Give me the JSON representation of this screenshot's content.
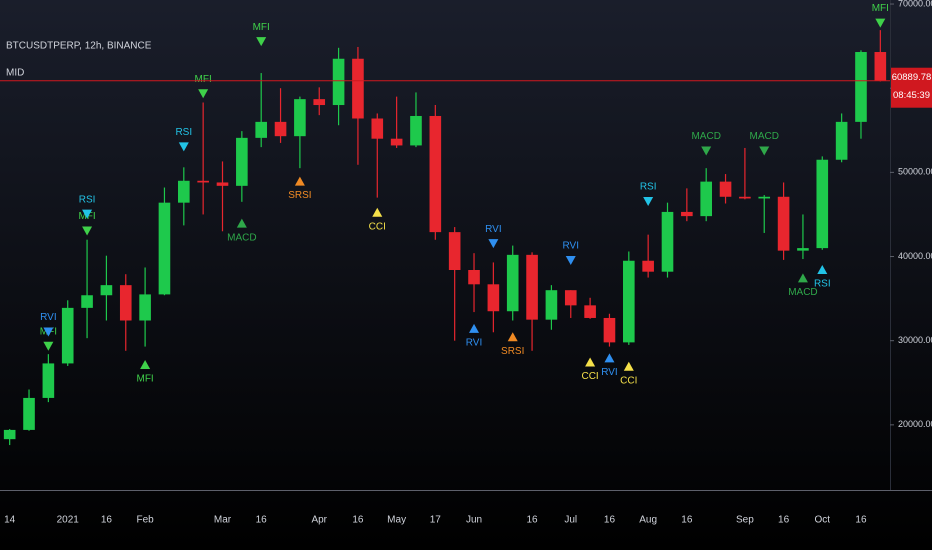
{
  "chart_data": {
    "type": "candlestick",
    "title": "BTCUSDTPERP, 12h, BINANCE",
    "subtitle": "MID",
    "categories": [
      "14",
      null,
      null,
      "2021",
      null,
      "16",
      null,
      "Feb",
      null,
      null,
      null,
      "Mar",
      null,
      "16",
      null,
      null,
      "Apr",
      null,
      "16",
      null,
      "May",
      null,
      "17",
      null,
      "Jun",
      null,
      null,
      "16",
      null,
      "Jul",
      null,
      "16",
      null,
      "Aug",
      null,
      "16",
      null,
      null,
      "Sep",
      null,
      "16",
      null,
      "Oct",
      null,
      "16",
      null
    ],
    "open": [
      18300,
      19400,
      23200,
      27300,
      33900,
      35400,
      36600,
      32400,
      35500,
      46400,
      49000,
      48800,
      48400,
      54100,
      56000,
      54300,
      58700,
      58000,
      63500,
      56400,
      54000,
      53200,
      56700,
      42900,
      38400,
      36700,
      33500,
      40200,
      32500,
      36000,
      34200,
      32700,
      29800,
      39500,
      38200,
      45300,
      44800,
      48900,
      47100,
      46900,
      47100,
      40700,
      41000,
      51500,
      56000,
      64300
    ],
    "high": [
      19500,
      24200,
      28400,
      34800,
      42000,
      40100,
      37900,
      38700,
      48200,
      50600,
      58300,
      51300,
      54900,
      61800,
      60000,
      59000,
      60100,
      64800,
      64900,
      57000,
      59000,
      59500,
      58000,
      43500,
      40400,
      39300,
      41300,
      40500,
      36600,
      36000,
      35100,
      33200,
      40600,
      42600,
      46400,
      48100,
      50500,
      49800,
      52900,
      47300,
      48800,
      45000,
      51900,
      57000,
      64500,
      66900
    ],
    "low": [
      17600,
      19300,
      22700,
      27000,
      30300,
      32400,
      28800,
      29300,
      35400,
      43700,
      45000,
      43000,
      46500,
      53000,
      53500,
      50500,
      56800,
      55600,
      50900,
      47000,
      52900,
      53000,
      42000,
      30000,
      33400,
      31000,
      32400,
      28800,
      31300,
      32700,
      32600,
      29300,
      29500,
      37500,
      37500,
      44200,
      44200,
      46300,
      46800,
      42800,
      39600,
      39700,
      40800,
      51200,
      54000,
      60800
    ],
    "close": [
      19400,
      23200,
      27300,
      33900,
      35400,
      36600,
      32400,
      35500,
      46400,
      49000,
      48800,
      48400,
      54100,
      56000,
      54300,
      58700,
      58000,
      63500,
      56400,
      54000,
      53200,
      56700,
      42900,
      38400,
      36700,
      33500,
      40200,
      32500,
      36000,
      34200,
      32700,
      29800,
      39500,
      38200,
      45300,
      44800,
      48900,
      47100,
      46900,
      47100,
      40700,
      41000,
      51500,
      56000,
      64300,
      60889.78
    ],
    "up_color": "#1ec94c",
    "down_color": "#e8262e",
    "ylim": [
      12260,
      70480
    ],
    "yticks": [
      {
        "value": 20000,
        "label": "20000.00"
      },
      {
        "value": 30000,
        "label": "30000.00"
      },
      {
        "value": 40000,
        "label": "40000.00"
      },
      {
        "value": 50000,
        "label": "50000.00"
      },
      {
        "value": 60000,
        "label": "60000.00"
      },
      {
        "value": 70000,
        "label": "70000.00"
      }
    ],
    "last_price": 60889.78,
    "countdown": "08:45:39",
    "price_line_color": "#d0181f",
    "signals": [
      {
        "name": "MFI",
        "color": "#3fd14a",
        "values": [
          null,
          null,
          28800,
          null,
          42500,
          null,
          null,
          27700,
          null,
          null,
          58800,
          null,
          null,
          65000,
          null,
          null,
          null,
          null,
          null,
          null,
          null,
          null,
          null,
          null,
          null,
          null,
          null,
          null,
          null,
          null,
          null,
          null,
          null,
          null,
          null,
          null,
          null,
          null,
          null,
          null,
          null,
          null,
          null,
          null,
          null,
          67200
        ]
      },
      {
        "name": "RSI",
        "color": "#22c3e6",
        "values": [
          null,
          null,
          null,
          null,
          44500,
          null,
          null,
          null,
          null,
          52500,
          null,
          null,
          null,
          null,
          null,
          null,
          null,
          null,
          null,
          null,
          null,
          null,
          null,
          null,
          null,
          null,
          null,
          null,
          null,
          null,
          null,
          null,
          null,
          46000,
          null,
          null,
          null,
          null,
          null,
          null,
          null,
          null,
          39000,
          null,
          null,
          null
        ]
      },
      {
        "name": "RVI",
        "color": "#2f8ff0",
        "values": [
          null,
          null,
          30500,
          null,
          null,
          null,
          null,
          null,
          null,
          null,
          null,
          null,
          null,
          null,
          null,
          null,
          null,
          null,
          null,
          null,
          null,
          null,
          null,
          null,
          32000,
          41000,
          null,
          null,
          null,
          39000,
          null,
          28500,
          null,
          null,
          null,
          null,
          null,
          null,
          null,
          null,
          null,
          null,
          null,
          null,
          null,
          null
        ]
      },
      {
        "name": "SRSI",
        "color": "#f08a24",
        "values": [
          null,
          null,
          null,
          null,
          null,
          null,
          null,
          null,
          null,
          null,
          null,
          null,
          null,
          null,
          null,
          49500,
          null,
          null,
          null,
          null,
          null,
          null,
          null,
          null,
          null,
          null,
          31000,
          null,
          null,
          null,
          null,
          null,
          null,
          null,
          null,
          null,
          null,
          null,
          null,
          null,
          null,
          null,
          null,
          null,
          null,
          null
        ]
      },
      {
        "name": "CCI",
        "color": "#f5e04a",
        "values": [
          null,
          null,
          null,
          null,
          null,
          null,
          null,
          null,
          null,
          null,
          null,
          null,
          null,
          null,
          null,
          null,
          null,
          null,
          null,
          45800,
          null,
          null,
          null,
          null,
          null,
          null,
          null,
          null,
          null,
          null,
          28000,
          null,
          27500,
          null,
          null,
          null,
          null,
          null,
          null,
          null,
          null,
          null,
          null,
          null,
          null,
          null
        ]
      },
      {
        "name": "MACD",
        "color": "#2fa84a",
        "values": [
          null,
          null,
          null,
          null,
          null,
          null,
          null,
          null,
          null,
          null,
          null,
          null,
          44500,
          null,
          null,
          null,
          null,
          null,
          null,
          null,
          null,
          null,
          null,
          null,
          null,
          null,
          null,
          null,
          null,
          null,
          null,
          null,
          null,
          null,
          null,
          null,
          52000,
          null,
          null,
          52000,
          null,
          38000,
          null,
          null,
          null,
          null
        ]
      }
    ]
  }
}
